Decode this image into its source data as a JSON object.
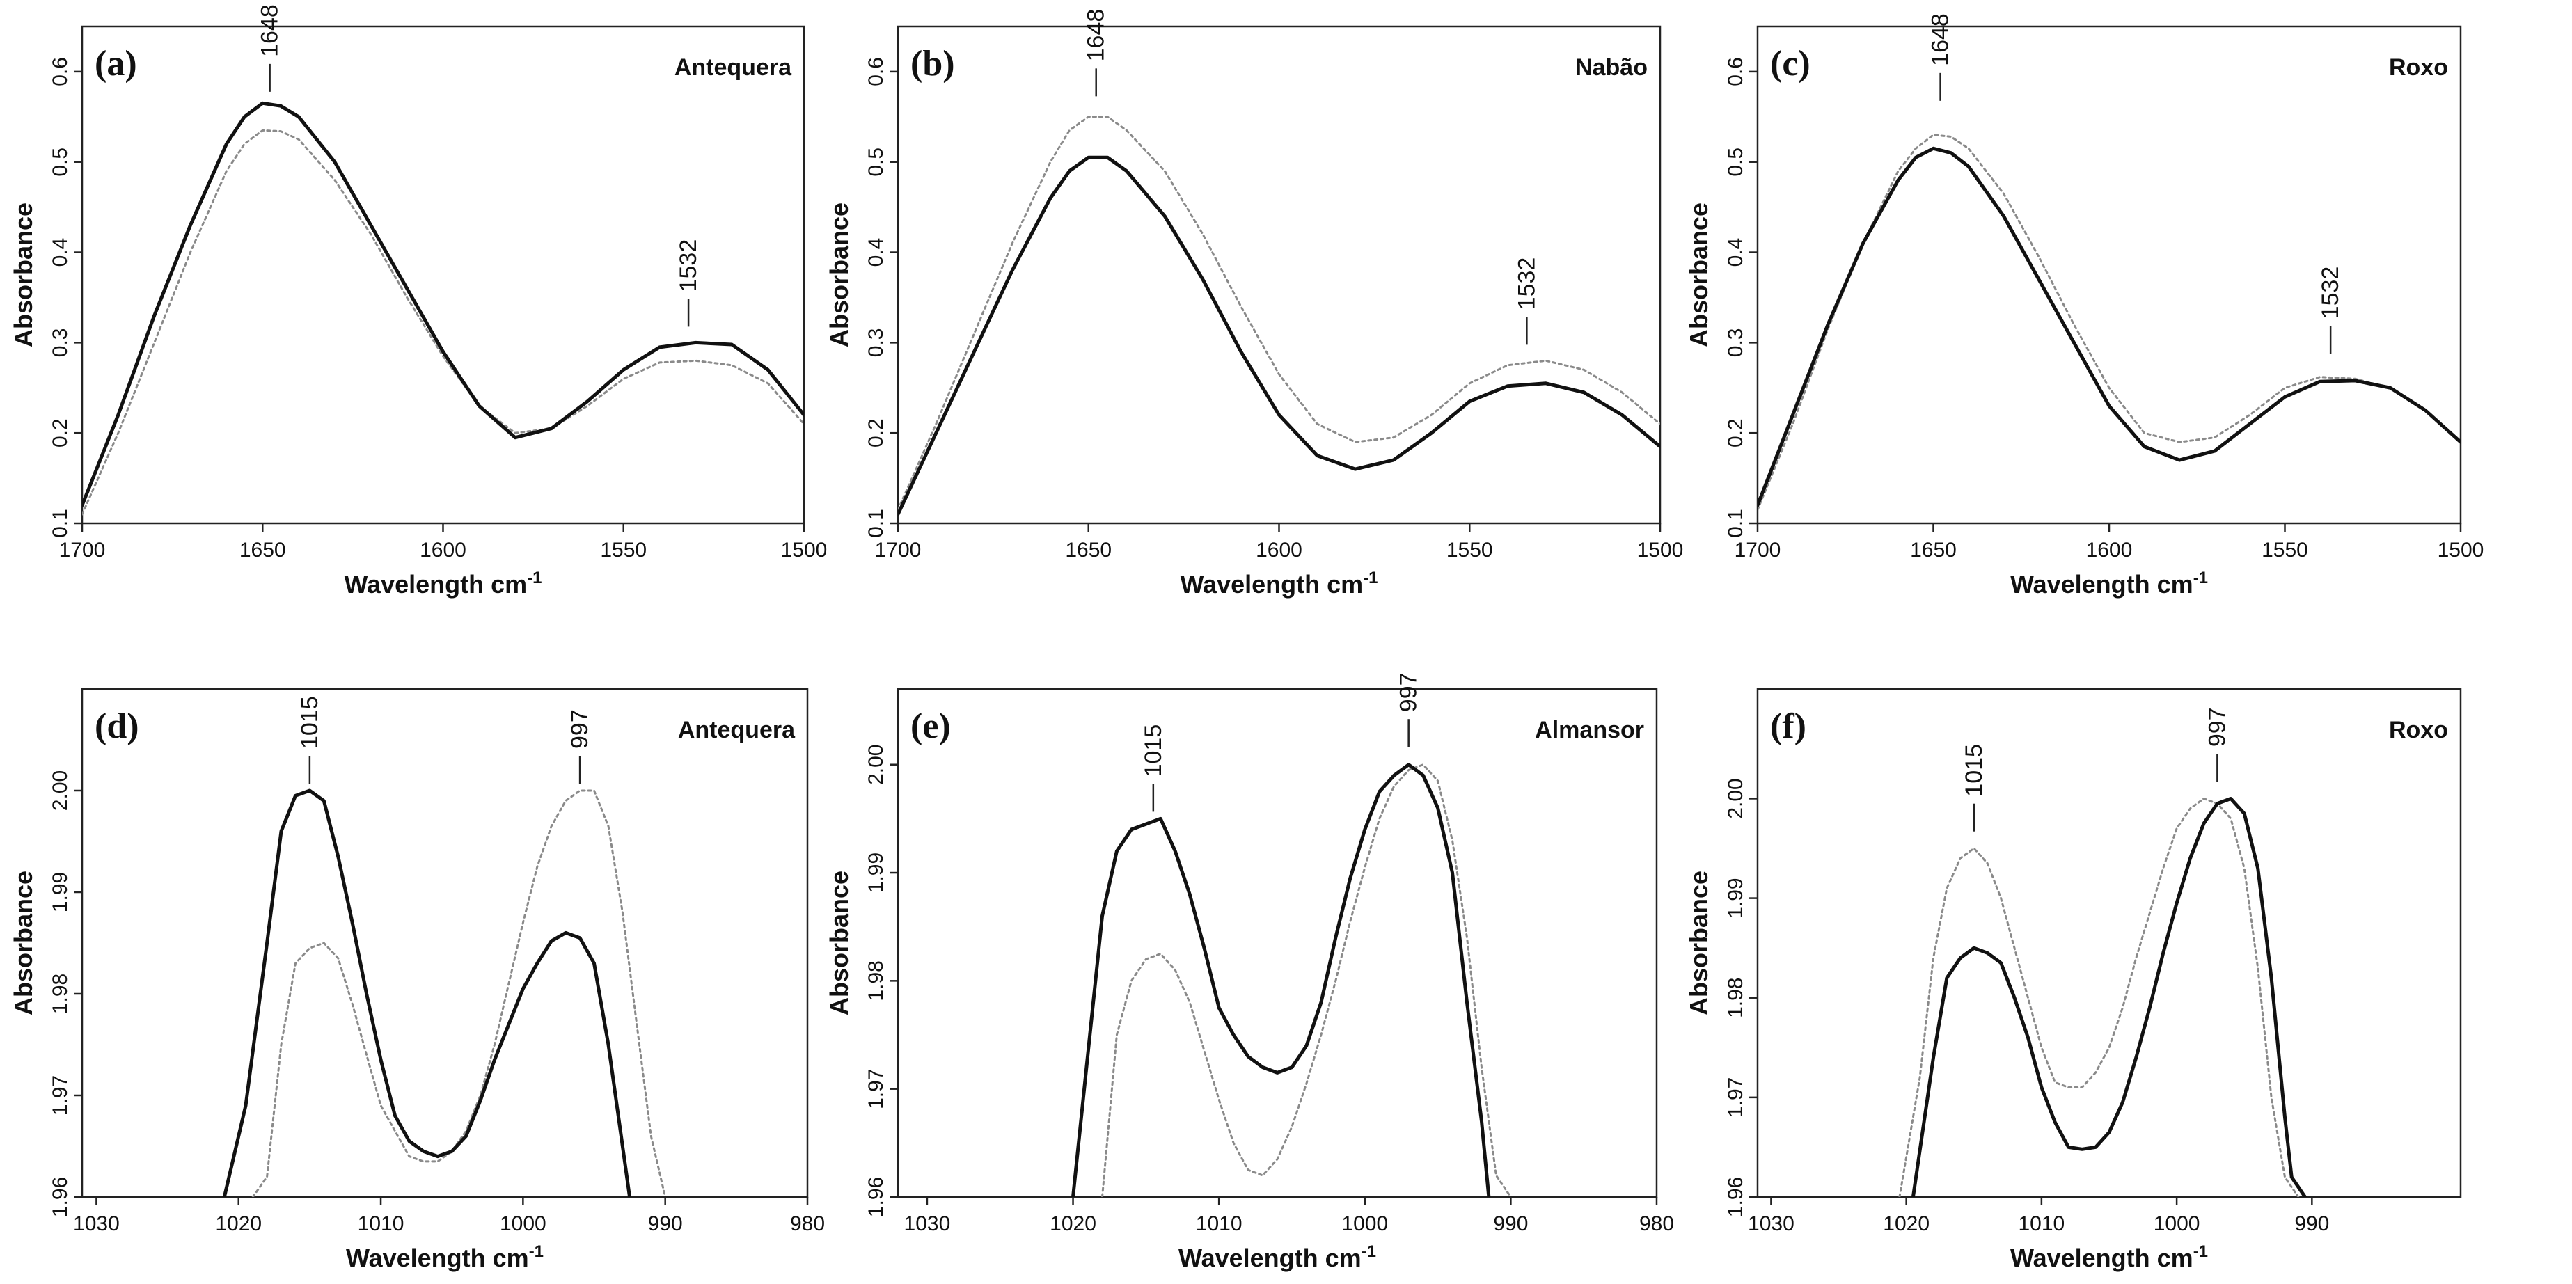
{
  "figure": {
    "background": "#ffffff",
    "line_color": "#111111",
    "dotted_color": "#8a8a8a"
  },
  "chart_data": [
    {
      "type": "line",
      "panel_label": "(a)",
      "title": "Antequera",
      "xlabel": "Wavelength cm-1",
      "ylabel": "Absorbance",
      "xlim": [
        1700,
        1500
      ],
      "ylim": [
        0.1,
        0.65
      ],
      "xticks": [
        1700,
        1650,
        1600,
        1550,
        1500
      ],
      "xtick_labels": [
        "1700",
        "1650",
        "1600",
        "1550",
        "1500"
      ],
      "yticks": [
        0.1,
        0.2,
        0.3,
        0.4,
        0.5,
        0.6
      ],
      "ytick_labels": [
        "0.1",
        "0.2",
        "0.3",
        "0.4",
        "0.5",
        "0.6"
      ],
      "annotations": [
        {
          "label": "1648",
          "x": 1648,
          "y": 0.57
        },
        {
          "label": "1532",
          "x": 1532,
          "y": 0.31
        }
      ],
      "series": [
        {
          "name": "solid",
          "style": "solid",
          "x": [
            1700,
            1690,
            1680,
            1670,
            1660,
            1655,
            1650,
            1645,
            1640,
            1630,
            1620,
            1610,
            1600,
            1590,
            1580,
            1570,
            1560,
            1550,
            1540,
            1530,
            1520,
            1510,
            1500
          ],
          "y": [
            0.12,
            0.22,
            0.33,
            0.43,
            0.52,
            0.55,
            0.565,
            0.562,
            0.55,
            0.5,
            0.43,
            0.36,
            0.29,
            0.23,
            0.195,
            0.205,
            0.235,
            0.27,
            0.295,
            0.3,
            0.298,
            0.27,
            0.22
          ]
        },
        {
          "name": "dotted",
          "style": "dotted",
          "x": [
            1700,
            1690,
            1680,
            1670,
            1660,
            1655,
            1650,
            1645,
            1640,
            1630,
            1620,
            1610,
            1600,
            1590,
            1580,
            1570,
            1560,
            1550,
            1540,
            1530,
            1520,
            1510,
            1500
          ],
          "y": [
            0.11,
            0.2,
            0.3,
            0.4,
            0.49,
            0.52,
            0.535,
            0.534,
            0.525,
            0.48,
            0.42,
            0.35,
            0.285,
            0.23,
            0.2,
            0.205,
            0.23,
            0.26,
            0.278,
            0.28,
            0.275,
            0.255,
            0.21
          ]
        }
      ]
    },
    {
      "type": "line",
      "panel_label": "(b)",
      "title": "Nabão",
      "xlabel": "Wavelength cm-1",
      "ylabel": "Absorbance",
      "xlim": [
        1700,
        1500
      ],
      "ylim": [
        0.1,
        0.65
      ],
      "xticks": [
        1700,
        1650,
        1600,
        1550,
        1500
      ],
      "xtick_labels": [
        "1700",
        "1650",
        "1600",
        "1550",
        "1500"
      ],
      "yticks": [
        0.1,
        0.2,
        0.3,
        0.4,
        0.5,
        0.6
      ],
      "ytick_labels": [
        "0.1",
        "0.2",
        "0.3",
        "0.4",
        "0.5",
        "0.6"
      ],
      "annotations": [
        {
          "label": "1648",
          "x": 1648,
          "y": 0.565
        },
        {
          "label": "1532",
          "x": 1535,
          "y": 0.29
        }
      ],
      "series": [
        {
          "name": "solid",
          "style": "solid",
          "x": [
            1700,
            1690,
            1680,
            1670,
            1660,
            1655,
            1650,
            1645,
            1640,
            1630,
            1620,
            1610,
            1600,
            1590,
            1580,
            1570,
            1560,
            1550,
            1540,
            1530,
            1520,
            1510,
            1500
          ],
          "y": [
            0.11,
            0.2,
            0.29,
            0.38,
            0.46,
            0.49,
            0.505,
            0.505,
            0.49,
            0.44,
            0.37,
            0.29,
            0.22,
            0.175,
            0.16,
            0.17,
            0.2,
            0.235,
            0.252,
            0.255,
            0.245,
            0.22,
            0.185
          ]
        },
        {
          "name": "dotted",
          "style": "dotted",
          "x": [
            1700,
            1690,
            1680,
            1670,
            1660,
            1655,
            1650,
            1645,
            1640,
            1630,
            1620,
            1610,
            1600,
            1590,
            1580,
            1570,
            1560,
            1550,
            1540,
            1530,
            1520,
            1510,
            1500
          ],
          "y": [
            0.115,
            0.21,
            0.31,
            0.41,
            0.5,
            0.535,
            0.55,
            0.55,
            0.535,
            0.49,
            0.42,
            0.34,
            0.265,
            0.21,
            0.19,
            0.195,
            0.22,
            0.255,
            0.275,
            0.28,
            0.27,
            0.245,
            0.21
          ]
        }
      ]
    },
    {
      "type": "line",
      "panel_label": "(c)",
      "title": "Roxo",
      "xlabel": "Wavelength cm-1",
      "ylabel": "Absorbance",
      "xlim": [
        1700,
        1500
      ],
      "ylim": [
        0.1,
        0.65
      ],
      "xticks": [
        1700,
        1650,
        1600,
        1550,
        1500
      ],
      "xtick_labels": [
        "1700",
        "1650",
        "1600",
        "1550",
        "1500"
      ],
      "yticks": [
        0.1,
        0.2,
        0.3,
        0.4,
        0.5,
        0.6
      ],
      "ytick_labels": [
        "0.1",
        "0.2",
        "0.3",
        "0.4",
        "0.5",
        "0.6"
      ],
      "annotations": [
        {
          "label": "1648",
          "x": 1648,
          "y": 0.56
        },
        {
          "label": "1532",
          "x": 1537,
          "y": 0.28
        }
      ],
      "series": [
        {
          "name": "solid",
          "style": "solid",
          "x": [
            1700,
            1690,
            1680,
            1670,
            1660,
            1655,
            1650,
            1645,
            1640,
            1630,
            1620,
            1610,
            1600,
            1590,
            1580,
            1570,
            1560,
            1550,
            1540,
            1530,
            1520,
            1510,
            1500
          ],
          "y": [
            0.12,
            0.22,
            0.32,
            0.41,
            0.48,
            0.505,
            0.515,
            0.51,
            0.495,
            0.44,
            0.37,
            0.3,
            0.23,
            0.185,
            0.17,
            0.18,
            0.21,
            0.24,
            0.257,
            0.258,
            0.25,
            0.225,
            0.19
          ]
        },
        {
          "name": "dotted",
          "style": "dotted",
          "x": [
            1700,
            1690,
            1680,
            1670,
            1660,
            1655,
            1650,
            1645,
            1640,
            1630,
            1620,
            1610,
            1600,
            1590,
            1580,
            1570,
            1560,
            1550,
            1540,
            1530,
            1520,
            1510,
            1500
          ],
          "y": [
            0.115,
            0.21,
            0.315,
            0.41,
            0.49,
            0.515,
            0.53,
            0.528,
            0.515,
            0.465,
            0.395,
            0.32,
            0.25,
            0.2,
            0.19,
            0.195,
            0.22,
            0.25,
            0.262,
            0.26,
            0.25,
            0.225,
            0.19
          ]
        }
      ]
    },
    {
      "type": "line",
      "panel_label": "(d)",
      "title": "Antequera",
      "xlabel": "Wavelength cm-1",
      "ylabel": "Absorbance",
      "xlim": [
        1031,
        980
      ],
      "ylim": [
        1.96,
        2.01
      ],
      "xticks": [
        1030,
        1020,
        1010,
        1000,
        990,
        980
      ],
      "xtick_labels": [
        "1030",
        "1020",
        "1010",
        "1000",
        "990",
        "980"
      ],
      "yticks": [
        1.96,
        1.97,
        1.98,
        1.99,
        2.0
      ],
      "ytick_labels": [
        "1.96",
        "1.97",
        "1.98",
        "1.99",
        "2.00"
      ],
      "annotations": [
        {
          "label": "1015",
          "x": 1015,
          "y": 2.0
        },
        {
          "label": "997",
          "x": 996,
          "y": 2.0
        }
      ],
      "series": [
        {
          "name": "solid",
          "style": "solid",
          "x": [
            1021,
            1019.5,
            1018,
            1017,
            1016,
            1015,
            1014,
            1013,
            1012,
            1011,
            1010,
            1009,
            1008,
            1007,
            1006,
            1005,
            1004,
            1003,
            1002,
            1001,
            1000,
            999,
            998,
            997,
            996,
            995,
            994,
            993,
            992.5
          ],
          "y": [
            1.96,
            1.969,
            1.985,
            1.996,
            1.9995,
            2.0,
            1.999,
            1.9935,
            1.987,
            1.98,
            1.9735,
            1.968,
            1.9655,
            1.9645,
            1.964,
            1.9645,
            1.966,
            1.9695,
            1.9735,
            1.977,
            1.9805,
            1.983,
            1.9852,
            1.986,
            1.9855,
            1.983,
            1.975,
            1.965,
            1.96
          ]
        },
        {
          "name": "dotted",
          "style": "dotted",
          "x": [
            1019,
            1018,
            1017,
            1016,
            1015,
            1014,
            1013,
            1012,
            1011,
            1010,
            1009,
            1008,
            1007,
            1006,
            1005,
            1004,
            1003,
            1002,
            1001,
            1000,
            999,
            998,
            997,
            996,
            995,
            994,
            993,
            992,
            991,
            990
          ],
          "y": [
            1.96,
            1.962,
            1.975,
            1.983,
            1.9845,
            1.985,
            1.9835,
            1.979,
            1.974,
            1.969,
            1.9665,
            1.964,
            1.9635,
            1.9635,
            1.9645,
            1.9665,
            1.97,
            1.975,
            1.981,
            1.987,
            1.9925,
            1.9965,
            1.999,
            2.0,
            2.0,
            1.9965,
            1.988,
            1.977,
            1.966,
            1.96
          ]
        }
      ]
    },
    {
      "type": "line",
      "panel_label": "(e)",
      "title": "Almansor",
      "xlabel": "Wavelength cm-1",
      "ylabel": "Absorbance",
      "xlim": [
        1032,
        980
      ],
      "ylim": [
        1.96,
        2.007
      ],
      "xticks": [
        1030,
        1020,
        1010,
        1000,
        990,
        980
      ],
      "xtick_labels": [
        "1030",
        "1020",
        "1010",
        "1000",
        "990",
        "980"
      ],
      "yticks": [
        1.96,
        1.97,
        1.98,
        1.99,
        2.0
      ],
      "ytick_labels": [
        "1.96",
        "1.97",
        "1.98",
        "1.99",
        "2.00"
      ],
      "annotations": [
        {
          "label": "1015",
          "x": 1014.5,
          "y": 1.995
        },
        {
          "label": "997",
          "x": 997,
          "y": 2.001
        }
      ],
      "series": [
        {
          "name": "solid",
          "style": "solid",
          "x": [
            1020,
            1019,
            1018,
            1017,
            1016,
            1015,
            1014,
            1013,
            1012,
            1011,
            1010,
            1009,
            1008,
            1007,
            1006,
            1005,
            1004,
            1003,
            1002,
            1001,
            1000,
            999,
            998,
            997,
            996,
            995,
            994,
            993,
            992,
            991.5
          ],
          "y": [
            1.96,
            1.973,
            1.986,
            1.992,
            1.994,
            1.9945,
            1.995,
            1.992,
            1.988,
            1.983,
            1.9775,
            1.975,
            1.973,
            1.972,
            1.9715,
            1.972,
            1.974,
            1.978,
            1.984,
            1.9895,
            1.994,
            1.9975,
            1.999,
            2.0,
            1.999,
            1.996,
            1.99,
            1.978,
            1.967,
            1.96
          ]
        },
        {
          "name": "dotted",
          "style": "dotted",
          "x": [
            1018,
            1017,
            1016,
            1015,
            1014,
            1013,
            1012,
            1011,
            1010,
            1009,
            1008,
            1007,
            1006,
            1005,
            1004,
            1003,
            1002,
            1001,
            1000,
            999,
            998,
            997,
            996,
            995,
            994,
            993,
            992,
            991,
            990
          ],
          "y": [
            1.96,
            1.975,
            1.98,
            1.982,
            1.9825,
            1.981,
            1.978,
            1.9735,
            1.969,
            1.965,
            1.9625,
            1.962,
            1.9635,
            1.9665,
            1.9705,
            1.975,
            1.98,
            1.9855,
            1.9905,
            1.995,
            1.998,
            1.9995,
            2.0,
            1.9985,
            1.993,
            1.984,
            1.972,
            1.962,
            1.96
          ]
        }
      ]
    },
    {
      "type": "line",
      "panel_label": "(f)",
      "title": "Roxo",
      "xlabel": "Wavelength cm-1",
      "ylabel": "Absorbance",
      "xlim": [
        1031,
        979
      ],
      "ylim": [
        1.96,
        2.011
      ],
      "xticks": [
        1030,
        1020,
        1010,
        1000,
        990
      ],
      "xtick_labels": [
        "1030",
        "1020",
        "1010",
        "1000",
        "990"
      ],
      "yticks": [
        1.96,
        1.97,
        1.98,
        1.99,
        2.0
      ],
      "ytick_labels": [
        "1.96",
        "1.97",
        "1.98",
        "1.99",
        "2.00"
      ],
      "annotations": [
        {
          "label": "1015",
          "x": 1015,
          "y": 1.996
        },
        {
          "label": "997",
          "x": 997,
          "y": 2.001
        }
      ],
      "series": [
        {
          "name": "solid",
          "style": "solid",
          "x": [
            1019.5,
            1018,
            1017,
            1016,
            1015,
            1014,
            1013,
            1012,
            1011,
            1010,
            1009,
            1008,
            1007,
            1006,
            1005,
            1004,
            1003,
            1002,
            1001,
            1000,
            999,
            998,
            997,
            996,
            995,
            994,
            993,
            992,
            991.5,
            990.5
          ],
          "y": [
            1.96,
            1.974,
            1.982,
            1.984,
            1.985,
            1.9845,
            1.9835,
            1.98,
            1.976,
            1.971,
            1.9675,
            1.965,
            1.9648,
            1.965,
            1.9665,
            1.9695,
            1.974,
            1.979,
            1.9845,
            1.9895,
            1.994,
            1.9975,
            1.9995,
            2.0,
            1.9985,
            1.993,
            1.982,
            1.968,
            1.962,
            1.96
          ]
        },
        {
          "name": "dotted",
          "style": "dotted",
          "x": [
            1020.5,
            1019,
            1018,
            1017,
            1016,
            1015,
            1014,
            1013,
            1012,
            1011,
            1010,
            1009,
            1008,
            1007,
            1006,
            1005,
            1004,
            1003,
            1002,
            1001,
            1000,
            999,
            998,
            997,
            996,
            995,
            994,
            993,
            992,
            991
          ],
          "y": [
            1.96,
            1.972,
            1.984,
            1.991,
            1.994,
            1.995,
            1.9935,
            1.99,
            1.985,
            1.98,
            1.975,
            1.9715,
            1.971,
            1.971,
            1.9725,
            1.975,
            1.979,
            1.984,
            1.9885,
            1.993,
            1.997,
            1.999,
            2.0,
            1.9995,
            1.998,
            1.993,
            1.983,
            1.97,
            1.962,
            1.96
          ]
        }
      ]
    }
  ]
}
